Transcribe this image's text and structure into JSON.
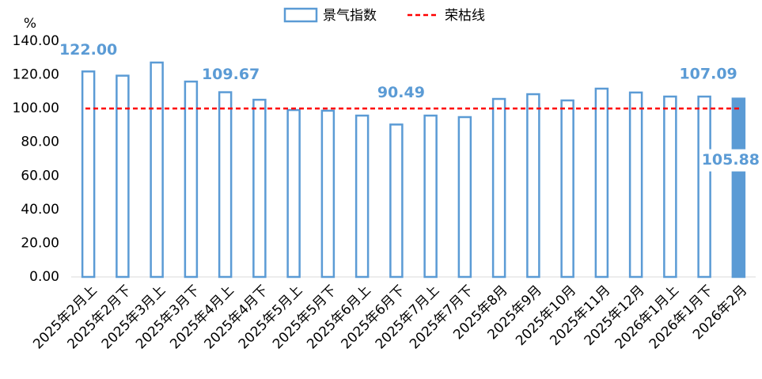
{
  "chart_data": {
    "type": "bar",
    "y_label": "%",
    "categories": [
      "2025年2月上",
      "2025年2月下",
      "2025年3月上",
      "2025年3月下",
      "2025年4月上",
      "2025年4月下",
      "2025年5月上",
      "2025年5月下",
      "2025年6月上",
      "2025年6月下",
      "2025年7月上",
      "2025年7月下",
      "2025年8月",
      "2025年9月",
      "2025年10月",
      "2025年11月",
      "2025年12月",
      "2026年1月上",
      "2026年1月下",
      "2026年2月"
    ],
    "series": [
      {
        "name": "景气指数",
        "color": "#5b9bd5",
        "values": [
          122.0,
          119.5,
          127.3,
          116.0,
          109.67,
          105.2,
          99.1,
          98.7,
          95.8,
          90.49,
          95.8,
          94.9,
          105.7,
          108.5,
          104.8,
          111.8,
          109.5,
          107.1,
          107.09,
          105.88
        ],
        "value_labels": [
          "122.00",
          null,
          null,
          null,
          "109.67",
          null,
          null,
          null,
          null,
          "90.49",
          null,
          null,
          null,
          null,
          null,
          null,
          null,
          null,
          "107.09",
          "105.88"
        ]
      }
    ],
    "reference_line": {
      "name": "荣枯线",
      "value": 100,
      "color": "#ff0000"
    },
    "ylim": [
      0,
      140
    ],
    "yticks": [
      {
        "value": 0,
        "label": "0.00"
      },
      {
        "value": 20,
        "label": "20.00"
      },
      {
        "value": 40,
        "label": "40.00"
      },
      {
        "value": 60,
        "label": "60.00"
      },
      {
        "value": 80,
        "label": "80.00"
      },
      {
        "value": 100,
        "label": "100.00"
      },
      {
        "value": 120,
        "label": "120.00"
      },
      {
        "value": 140,
        "label": "140.00"
      }
    ],
    "legend": "top"
  }
}
